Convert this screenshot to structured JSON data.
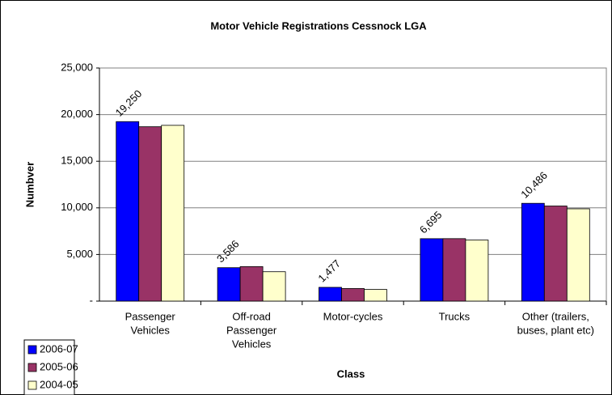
{
  "chart_data": {
    "type": "bar",
    "title": "Motor Vehicle Registrations Cessnock LGA",
    "ylabel": "Numbver",
    "xlabel": "Class",
    "categories": [
      [
        "Passenger",
        "Vehicles"
      ],
      [
        "Off-road",
        "Passenger",
        "Vehicles"
      ],
      [
        "Motor-cycles"
      ],
      [
        "Trucks"
      ],
      [
        "Other (trailers,",
        "buses, plant etc)"
      ]
    ],
    "series": [
      {
        "name": "2006-07",
        "color": "#0000ff",
        "values": [
          19250,
          3586,
          1477,
          6695,
          10486
        ],
        "value_labels": [
          "19,250",
          "3,586",
          "1,477",
          "6,695",
          "10,486"
        ]
      },
      {
        "name": "2005-06",
        "color": "#993366",
        "values": [
          18700,
          3700,
          1350,
          6700,
          10200
        ]
      },
      {
        "name": "2004-05",
        "color": "#ffffcc",
        "values": [
          18850,
          3150,
          1250,
          6550,
          9900
        ]
      }
    ],
    "ylim": [
      0,
      25000
    ],
    "yticks": [
      {
        "value": 0,
        "label": "-"
      },
      {
        "value": 5000,
        "label": "5,000"
      },
      {
        "value": 10000,
        "label": "10,000"
      },
      {
        "value": 15000,
        "label": "15,000"
      },
      {
        "value": 20000,
        "label": "20,000"
      },
      {
        "value": 25000,
        "label": "25,000"
      }
    ],
    "grid": true,
    "legend": "bottom-left"
  }
}
